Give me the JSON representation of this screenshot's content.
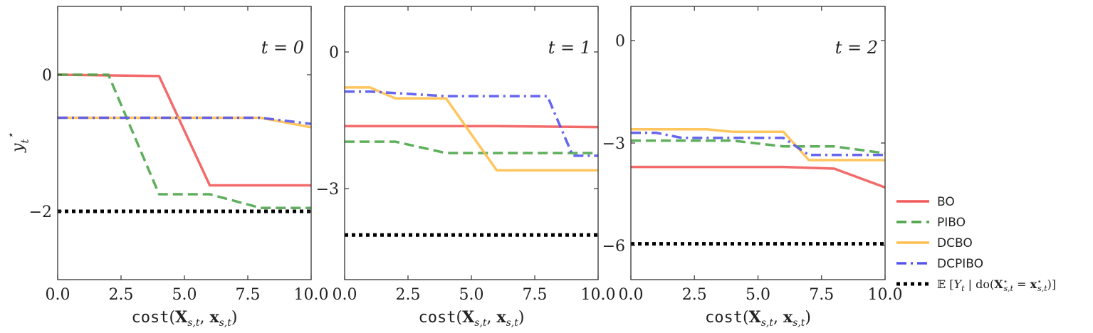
{
  "chart_data": [
    {
      "type": "line",
      "annotation": "t = 0",
      "ylabel": "y_t*",
      "xlabel": "cost(X_{s,t}, x_{s,t})",
      "xlim": [
        0,
        10
      ],
      "ylim": [
        -3,
        1
      ],
      "xticks": [
        "0.0",
        "2.5",
        "5.0",
        "7.5",
        "10.0"
      ],
      "xtick_values": [
        0,
        2.5,
        5,
        7.5,
        10
      ],
      "yticks": [
        "0",
        "−2"
      ],
      "ytick_values": [
        0,
        -2
      ],
      "series": [
        {
          "key": "BO",
          "x": [
            0,
            4,
            6,
            10
          ],
          "y": [
            0,
            -0.02,
            -1.62,
            -1.62
          ]
        },
        {
          "key": "PIBO",
          "x": [
            0,
            2,
            4,
            6,
            8,
            10
          ],
          "y": [
            0,
            0,
            -1.75,
            -1.75,
            -1.95,
            -1.95
          ]
        },
        {
          "key": "DCBO",
          "x": [
            0,
            8,
            10
          ],
          "y": [
            -0.63,
            -0.63,
            -0.77
          ]
        },
        {
          "key": "DCPIBO",
          "x": [
            0,
            8,
            10
          ],
          "y": [
            -0.63,
            -0.63,
            -0.72
          ]
        },
        {
          "key": "OPT",
          "x": [
            0,
            10
          ],
          "y": [
            -2.0,
            -2.0
          ]
        }
      ]
    },
    {
      "type": "line",
      "annotation": "t = 1",
      "ylabel": "",
      "xlabel": "cost(X_{s,t}, x_{s,t})",
      "xlim": [
        0,
        10
      ],
      "ylim": [
        -5,
        1
      ],
      "xticks": [
        "0.0",
        "2.5",
        "5.0",
        "7.5",
        "10.0"
      ],
      "xtick_values": [
        0,
        2.5,
        5,
        7.5,
        10
      ],
      "yticks": [
        "0",
        "−3"
      ],
      "ytick_values": [
        0,
        -3
      ],
      "series": [
        {
          "key": "BO",
          "x": [
            0,
            6,
            10
          ],
          "y": [
            -1.63,
            -1.63,
            -1.65
          ]
        },
        {
          "key": "PIBO",
          "x": [
            0,
            2,
            4,
            10
          ],
          "y": [
            -1.97,
            -1.97,
            -2.22,
            -2.22
          ]
        },
        {
          "key": "DCBO",
          "x": [
            0,
            1,
            2,
            4,
            6,
            10
          ],
          "y": [
            -0.78,
            -0.78,
            -1.02,
            -1.02,
            -2.6,
            -2.6
          ]
        },
        {
          "key": "DCPIBO",
          "x": [
            0,
            1,
            4,
            8,
            9,
            10
          ],
          "y": [
            -0.87,
            -0.87,
            -0.97,
            -0.97,
            -2.28,
            -2.28
          ]
        },
        {
          "key": "OPT",
          "x": [
            0,
            10
          ],
          "y": [
            -4.02,
            -4.02
          ]
        }
      ]
    },
    {
      "type": "line",
      "annotation": "t = 2",
      "ylabel": "",
      "xlabel": "cost(X_{s,t}, x_{s,t})",
      "xlim": [
        0,
        10
      ],
      "ylim": [
        -7,
        1
      ],
      "xticks": [
        "0.0",
        "2.5",
        "5.0",
        "7.5",
        "10.0"
      ],
      "xtick_values": [
        0,
        2.5,
        5,
        7.5,
        10
      ],
      "yticks": [
        "0",
        "−3",
        "−6"
      ],
      "ytick_values": [
        0,
        -3,
        -6
      ],
      "series": [
        {
          "key": "BO",
          "x": [
            0,
            6,
            8,
            10
          ],
          "y": [
            -3.7,
            -3.7,
            -3.75,
            -4.3
          ]
        },
        {
          "key": "PIBO",
          "x": [
            0,
            4,
            6,
            8,
            10
          ],
          "y": [
            -2.93,
            -2.93,
            -3.1,
            -3.1,
            -3.3
          ]
        },
        {
          "key": "DCBO",
          "x": [
            0,
            3,
            4,
            6,
            7,
            10
          ],
          "y": [
            -2.6,
            -2.6,
            -2.67,
            -2.67,
            -3.5,
            -3.5
          ]
        },
        {
          "key": "DCPIBO",
          "x": [
            0,
            1,
            2,
            6,
            7,
            10
          ],
          "y": [
            -2.7,
            -2.7,
            -2.85,
            -2.85,
            -3.35,
            -3.35
          ]
        },
        {
          "key": "OPT",
          "x": [
            0,
            10
          ],
          "y": [
            -5.95,
            -5.95
          ]
        }
      ]
    }
  ],
  "styles": {
    "BO": {
      "color": "#f25a5a",
      "dash": ""
    },
    "PIBO": {
      "color": "#4ea64a",
      "dash": "14,7"
    },
    "DCBO": {
      "color": "#ffbf4d",
      "dash": ""
    },
    "DCPIBO": {
      "color": "#5555ee",
      "dash": "14,6,3,6"
    },
    "OPT": {
      "color": "#000000",
      "dash": "5,5"
    }
  },
  "legend": [
    {
      "key": "BO",
      "label": "BO"
    },
    {
      "key": "PIBO",
      "label": "PIBO"
    },
    {
      "key": "DCBO",
      "label": "DCBO"
    },
    {
      "key": "DCPIBO",
      "label": "DCPIBO"
    },
    {
      "key": "OPT",
      "label": "𝔼 [Y_t | do(X*_{s,t} = x*_{s,t})]"
    }
  ]
}
